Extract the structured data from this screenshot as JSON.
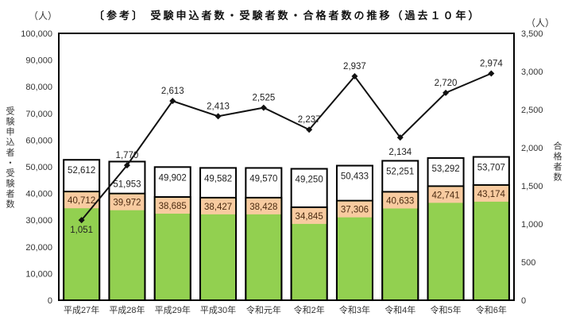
{
  "title": "〔参考〕 受験申込者数・受験者数・合格者数の推移（過去１０年）",
  "left_unit": "（人）",
  "right_unit": "（人）",
  "left_axis_label": "受験申込者・受験者数",
  "right_axis_label": "合格者数",
  "colors": {
    "applicants_fill": "#ffffff",
    "examinees_fill": "#92D050",
    "examinee_label_bg": "#F8CBA0",
    "passers_line": "#111111",
    "frame": "#000000"
  },
  "chart_data": {
    "type": "bar",
    "title": "〔参考〕 受験申込者数・受験者数・合格者数の推移（過去１０年）",
    "xlabel": "",
    "ylabel": "受験申込者・受験者数",
    "y2label": "合格者数",
    "ylim": [
      0,
      100000
    ],
    "y2lim": [
      0,
      3500
    ],
    "yticks": [
      0,
      10000,
      20000,
      30000,
      40000,
      50000,
      60000,
      70000,
      80000,
      90000,
      100000
    ],
    "ytick_labels": [
      "0",
      "10,000",
      "20,000",
      "30,000",
      "40,000",
      "50,000",
      "60,000",
      "70,000",
      "80,000",
      "90,000",
      "100,000"
    ],
    "y2ticks": [
      0,
      500,
      1000,
      1500,
      2000,
      2500,
      3000,
      3500
    ],
    "y2tick_labels": [
      "0",
      "500",
      "1,000",
      "1,500",
      "2,000",
      "2,500",
      "3,000",
      "3,500"
    ],
    "grid": false,
    "legend": null,
    "categories": [
      "平成27年",
      "平成28年",
      "平成29年",
      "平成30年",
      "令和元年",
      "令和2年",
      "令和3年",
      "令和4年",
      "令和5年",
      "令和6年"
    ],
    "series": [
      {
        "name": "受験申込者数",
        "type": "bar",
        "axis": "left",
        "values": [
          52612,
          51953,
          49902,
          49582,
          49570,
          49250,
          50433,
          52251,
          53292,
          53707
        ],
        "labels": [
          "52,612",
          "51,953",
          "49,902",
          "49,582",
          "49,570",
          "49,250",
          "50,433",
          "52,251",
          "53,292",
          "53,707"
        ]
      },
      {
        "name": "受験者数",
        "type": "bar",
        "axis": "left",
        "values": [
          40712,
          39972,
          38685,
          38427,
          38428,
          34845,
          37306,
          40633,
          42741,
          43174
        ],
        "labels": [
          "40,712",
          "39,972",
          "38,685",
          "38,427",
          "38,428",
          "34,845",
          "37,306",
          "40,633",
          "42,741",
          "43,174"
        ]
      },
      {
        "name": "合格者数",
        "type": "line",
        "axis": "right",
        "values": [
          1051,
          1770,
          2613,
          2413,
          2525,
          2237,
          2937,
          2134,
          2720,
          2974
        ],
        "labels": [
          "1,051",
          "1,770",
          "2,613",
          "2,413",
          "2,525",
          "2,237",
          "2,937",
          "2,134",
          "2,720",
          "2,974"
        ]
      }
    ]
  }
}
